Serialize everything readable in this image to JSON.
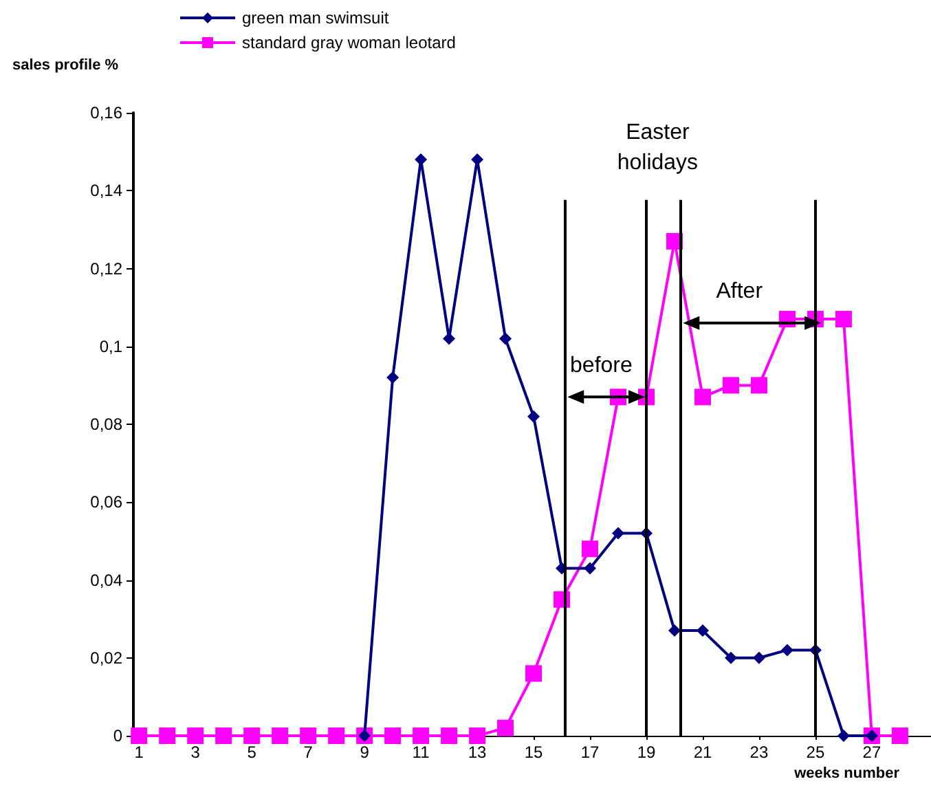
{
  "chart_data": {
    "type": "line",
    "xlabel": "weeks number",
    "ylabel": "sales profile %",
    "x": [
      1,
      2,
      3,
      4,
      5,
      6,
      7,
      8,
      9,
      10,
      11,
      12,
      13,
      14,
      15,
      16,
      17,
      18,
      19,
      20,
      21,
      22,
      23,
      24,
      25,
      26,
      27,
      28
    ],
    "series": [
      {
        "name": "green man swimsuit",
        "color": "#000080",
        "marker": "diamond",
        "values": [
          null,
          null,
          null,
          null,
          null,
          null,
          null,
          null,
          0,
          0.092,
          0.148,
          0.102,
          0.148,
          0.102,
          0.082,
          0.043,
          0.043,
          0.052,
          0.052,
          0.027,
          0.027,
          0.02,
          0.02,
          0.022,
          0.022,
          0,
          0,
          null
        ]
      },
      {
        "name": "standard gray woman leotard",
        "color": "#ff00ff",
        "marker": "square",
        "values": [
          0,
          0,
          0,
          0,
          0,
          0,
          0,
          0,
          0,
          0,
          0,
          0,
          0,
          0.002,
          0.016,
          0.035,
          0.048,
          0.087,
          0.087,
          0.127,
          0.087,
          0.09,
          0.09,
          0.107,
          0.107,
          0.107,
          0,
          0
        ]
      }
    ],
    "xlim": [
      0.8,
      29.1
    ],
    "xticks": [
      1,
      3,
      5,
      7,
      9,
      11,
      13,
      15,
      17,
      19,
      21,
      23,
      25,
      27
    ],
    "ylim": [
      0,
      0.16
    ],
    "yticks": [
      0,
      {
        "value": 0.02,
        "label": "0,02"
      },
      {
        "value": 0.04,
        "label": "0,04"
      },
      {
        "value": 0.06,
        "label": "0,06"
      },
      {
        "value": 0.08,
        "label": "0,08"
      },
      {
        "value": 0.1,
        "label": "0,1"
      },
      {
        "value": 0.12,
        "label": "0,12"
      },
      {
        "value": 0.14,
        "label": "0,14"
      },
      {
        "value": 0.16,
        "label": "0,16"
      }
    ],
    "ref_lines": [
      {
        "axis": "x",
        "value": 16.1,
        "color": "#000000"
      },
      {
        "axis": "x",
        "value": 19,
        "color": "#000000"
      },
      {
        "axis": "x",
        "value": 20.2,
        "color": "#000000"
      },
      {
        "axis": "x",
        "value": 25,
        "color": "#000000"
      }
    ],
    "annotations": [
      "Easter holidays",
      "before",
      "After"
    ],
    "grid": false,
    "legend": "top left",
    "line_style": "solid"
  }
}
